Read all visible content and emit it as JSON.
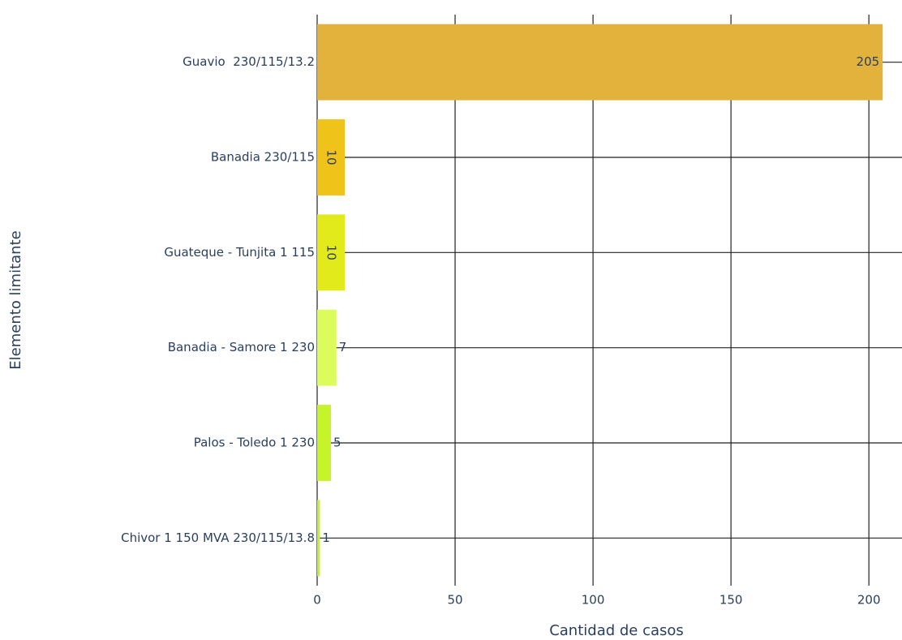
{
  "chart_data": {
    "type": "bar",
    "orientation": "horizontal",
    "x_label": "Cantidad de casos",
    "y_label": "Elemento limitante",
    "categories": [
      "Guavio  230/115/13.2",
      "Banadia 230/115",
      "Guateque - Tunjita 1 115",
      "Banadia - Samore 1 230",
      "Palos - Toledo 1 230",
      "Chivor 1 150 MVA 230/115/13.8"
    ],
    "values": [
      205,
      10,
      10,
      7,
      5,
      1
    ],
    "colors": [
      "#e3b23c",
      "#efc31a",
      "#e3ea1b",
      "#dcfc5c",
      "#c6f42a",
      "#c4ee3a"
    ],
    "xlim": [
      0,
      212
    ],
    "xticks": [
      0,
      50,
      100,
      150,
      200
    ],
    "grid": true
  }
}
